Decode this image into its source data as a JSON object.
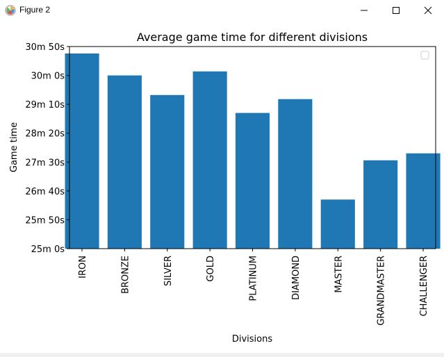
{
  "window": {
    "title": "Figure 2",
    "icon": "matplotlib-icon",
    "controls": [
      "minimize-icon",
      "maximize-icon",
      "close-icon"
    ]
  },
  "chart_data": {
    "type": "bar",
    "title": "Average game time for different divisions",
    "xlabel": "Divisions",
    "ylabel": "Game time",
    "categories": [
      "IRON",
      "BRONZE",
      "SILVER",
      "GOLD",
      "PLATINUM",
      "DIAMOND",
      "MASTER",
      "GRANDMASTER",
      "CHALLENGER"
    ],
    "values": [
      1838,
      1800,
      1766,
      1807,
      1735,
      1759,
      1585,
      1653,
      1665
    ],
    "value_unit": "seconds",
    "ylim": [
      1500,
      1850
    ],
    "yticks": [
      1500,
      1550,
      1600,
      1650,
      1700,
      1750,
      1800,
      1850
    ],
    "ytick_labels": [
      "25m 0s",
      "25m 50s",
      "26m 40s",
      "27m 30s",
      "28m 20s",
      "29m 10s",
      "30m 0s",
      "30m 50s"
    ],
    "bar_color": "#1f77b4",
    "legend": {
      "placement": "upper-right",
      "entries": []
    },
    "grid": false
  }
}
